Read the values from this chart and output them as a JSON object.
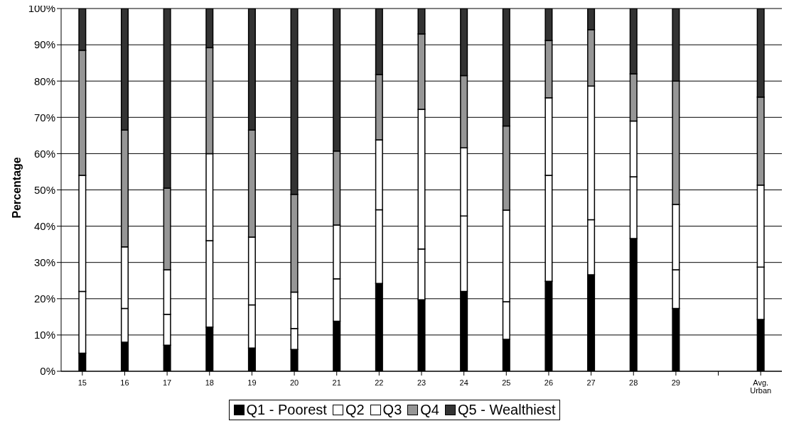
{
  "chart_data": {
    "type": "bar",
    "stacked": true,
    "ylabel": "Percentage",
    "categories": [
      "15",
      "16",
      "17",
      "18",
      "19",
      "20",
      "21",
      "22",
      "23",
      "24",
      "25",
      "26",
      "27",
      "28",
      "29",
      null,
      "Avg. Urban"
    ],
    "series": [
      {
        "name": "Q1 - Poorest",
        "color": "#000000",
        "values": [
          5,
          8,
          7.2,
          12.2,
          6.4,
          6,
          13.8,
          24.2,
          19.7,
          22,
          8.8,
          24.8,
          26.6,
          36.6,
          17.3,
          null,
          14.3
        ]
      },
      {
        "name": "Q2",
        "color": "#ffffff",
        "values": [
          17,
          9.3,
          8.5,
          23.8,
          11.9,
          5.8,
          11.7,
          20.3,
          14,
          20.8,
          10.4,
          29.2,
          15.2,
          17,
          10.7,
          null,
          14.4
        ]
      },
      {
        "name": "Q3",
        "color": "#ffffff",
        "values": [
          32,
          17,
          12.3,
          24,
          18.7,
          10,
          14.8,
          19.3,
          38.5,
          18.8,
          25.2,
          21.4,
          36.8,
          15.4,
          18,
          null,
          22.6
        ]
      },
      {
        "name": "Q4",
        "color": "#969696",
        "values": [
          34.5,
          32.2,
          22.5,
          29.2,
          29.5,
          27,
          20.4,
          18,
          20.8,
          19.9,
          23.2,
          15.8,
          15.6,
          13,
          34,
          null,
          24.3
        ]
      },
      {
        "name": "Q5 - Wealthiest",
        "color": "#333333",
        "values": [
          11.5,
          33.5,
          49.5,
          10.8,
          33.5,
          51.2,
          39.3,
          18.2,
          7,
          18.5,
          32.4,
          8.8,
          5.8,
          18,
          20,
          null,
          24.4
        ]
      }
    ],
    "ylim": [
      0,
      100
    ],
    "yticks": [
      {
        "value": 0,
        "label": "0%"
      },
      {
        "value": 10,
        "label": "10%"
      },
      {
        "value": 20,
        "label": "20%"
      },
      {
        "value": 30,
        "label": "30%"
      },
      {
        "value": 40,
        "label": "40%"
      },
      {
        "value": 50,
        "label": "50%"
      },
      {
        "value": 60,
        "label": "60%"
      },
      {
        "value": 70,
        "label": "70%"
      },
      {
        "value": 80,
        "label": "80%"
      },
      {
        "value": 90,
        "label": "90%"
      },
      {
        "value": 100,
        "label": "100%"
      }
    ],
    "grid": "y",
    "legend": "bottom"
  }
}
